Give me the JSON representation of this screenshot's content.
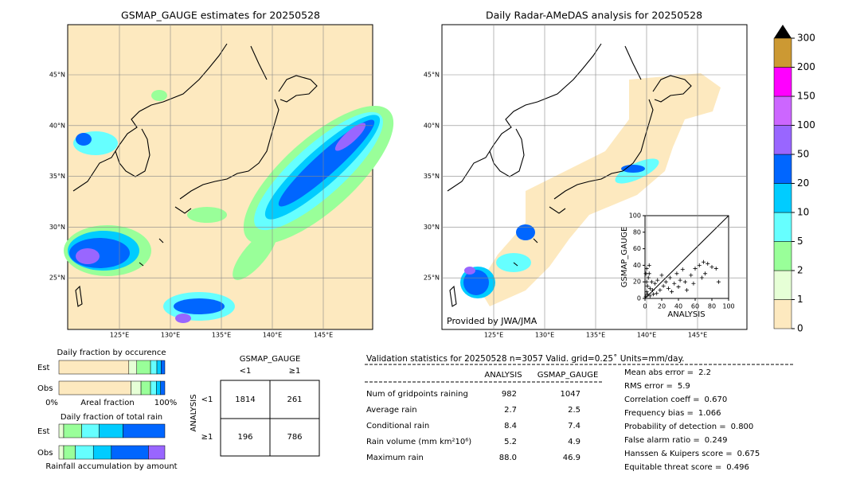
{
  "left_map": {
    "title": "GSMAP_GAUGE estimates for 20250528",
    "lat_labels": [
      "45°N",
      "40°N",
      "35°N",
      "30°N",
      "25°N"
    ],
    "lon_labels": [
      "125°E",
      "130°E",
      "135°E",
      "140°E",
      "145°E"
    ]
  },
  "right_map": {
    "title": "Daily Radar-AMeDAS analysis for 20250528",
    "lat_labels": [
      "45°N",
      "40°N",
      "35°N",
      "30°N",
      "25°N"
    ],
    "lon_labels": [
      "125°E",
      "130°E",
      "135°E",
      "140°E",
      "145°E"
    ],
    "credit": "Provided by JWA/JMA"
  },
  "colorbar": {
    "levels": [
      0,
      1,
      2,
      5,
      10,
      20,
      50,
      100,
      150,
      200,
      300
    ],
    "colors": [
      "#fde9bf",
      "#e6ffd6",
      "#99ff99",
      "#66ffff",
      "#00ccff",
      "#0066ff",
      "#9966ff",
      "#cc66ff",
      "#ff00ff",
      "#cc9933"
    ]
  },
  "scatter": {
    "xlabel": "ANALYSIS",
    "ylabel": "GSMAP_GAUGE",
    "ticks": [
      0,
      20,
      40,
      60,
      80,
      100
    ],
    "points": [
      [
        1,
        2
      ],
      [
        2,
        8
      ],
      [
        3,
        15
      ],
      [
        4,
        25
      ],
      [
        5,
        30
      ],
      [
        2,
        36
      ],
      [
        6,
        12
      ],
      [
        8,
        20
      ],
      [
        10,
        5
      ],
      [
        12,
        18
      ],
      [
        15,
        22
      ],
      [
        18,
        10
      ],
      [
        20,
        28
      ],
      [
        22,
        15
      ],
      [
        25,
        20
      ],
      [
        28,
        12
      ],
      [
        30,
        25
      ],
      [
        32,
        8
      ],
      [
        35,
        18
      ],
      [
        38,
        30
      ],
      [
        40,
        14
      ],
      [
        42,
        22
      ],
      [
        45,
        35
      ],
      [
        48,
        20
      ],
      [
        50,
        10
      ],
      [
        55,
        28
      ],
      [
        58,
        18
      ],
      [
        60,
        36
      ],
      [
        65,
        40
      ],
      [
        68,
        25
      ],
      [
        70,
        44
      ],
      [
        72,
        30
      ],
      [
        75,
        42
      ],
      [
        80,
        38
      ],
      [
        85,
        36
      ],
      [
        88,
        20
      ],
      [
        3,
        5
      ],
      [
        6,
        3
      ],
      [
        9,
        10
      ],
      [
        14,
        6
      ],
      [
        2,
        20
      ],
      [
        5,
        40
      ],
      [
        1,
        30
      ]
    ]
  },
  "occurrence": {
    "title": "Daily fraction by occurence",
    "rows": [
      "Est",
      "Obs"
    ],
    "axis_labels": [
      "0%",
      "Areal fraction",
      "100%"
    ],
    "fractions": [
      [
        66,
        7.5,
        13,
        6,
        4,
        3.5
      ],
      [
        68,
        9.5,
        9,
        5.5,
        4,
        4
      ]
    ]
  },
  "total_rain": {
    "title": "Daily fraction of total rain",
    "rows": [
      "Est",
      "Obs"
    ],
    "xlabel": "Rainfall accumulation by amount",
    "fractions": [
      [
        0,
        4.5,
        17,
        16.5,
        22.5,
        39.5
      ],
      [
        0,
        4.5,
        11,
        17,
        17,
        35,
        15.5
      ]
    ]
  },
  "contingency": {
    "title": "GSMAP_GAUGE",
    "col_labels": [
      "<1",
      "≥1"
    ],
    "row_title": "ANALYSIS",
    "row_labels": [
      "<1",
      "≥1"
    ],
    "cells": [
      [
        "1814",
        "261"
      ],
      [
        "196",
        "786"
      ]
    ]
  },
  "stats": {
    "header": "Validation statistics for 20250528  n=3057 Valid. grid=0.25˚ Units=mm/day.",
    "columns": [
      "ANALYSIS",
      "GSMAP_GAUGE"
    ],
    "rows": [
      {
        "label": "Num of gridpoints raining",
        "values": [
          "982",
          "1047"
        ]
      },
      {
        "label": "Average rain",
        "values": [
          "2.7",
          "2.5"
        ]
      },
      {
        "label": "Conditional rain",
        "values": [
          "8.4",
          "7.4"
        ]
      },
      {
        "label": "Rain volume (mm km²10⁶)",
        "values": [
          "5.2",
          "4.9"
        ]
      },
      {
        "label": "Maximum rain",
        "values": [
          "88.0",
          "46.9"
        ]
      }
    ],
    "scores": [
      {
        "label": "Mean abs error =",
        "value": "2.2"
      },
      {
        "label": "RMS error =",
        "value": "5.9"
      },
      {
        "label": "Correlation coeff =",
        "value": "0.670"
      },
      {
        "label": "Frequency bias =",
        "value": "1.066"
      },
      {
        "label": "Probability of detection =",
        "value": "0.800"
      },
      {
        "label": "False alarm ratio =",
        "value": "0.249"
      },
      {
        "label": "Hanssen & Kuipers score =",
        "value": "0.675"
      },
      {
        "label": "Equitable threat score =",
        "value": "0.496"
      }
    ]
  }
}
